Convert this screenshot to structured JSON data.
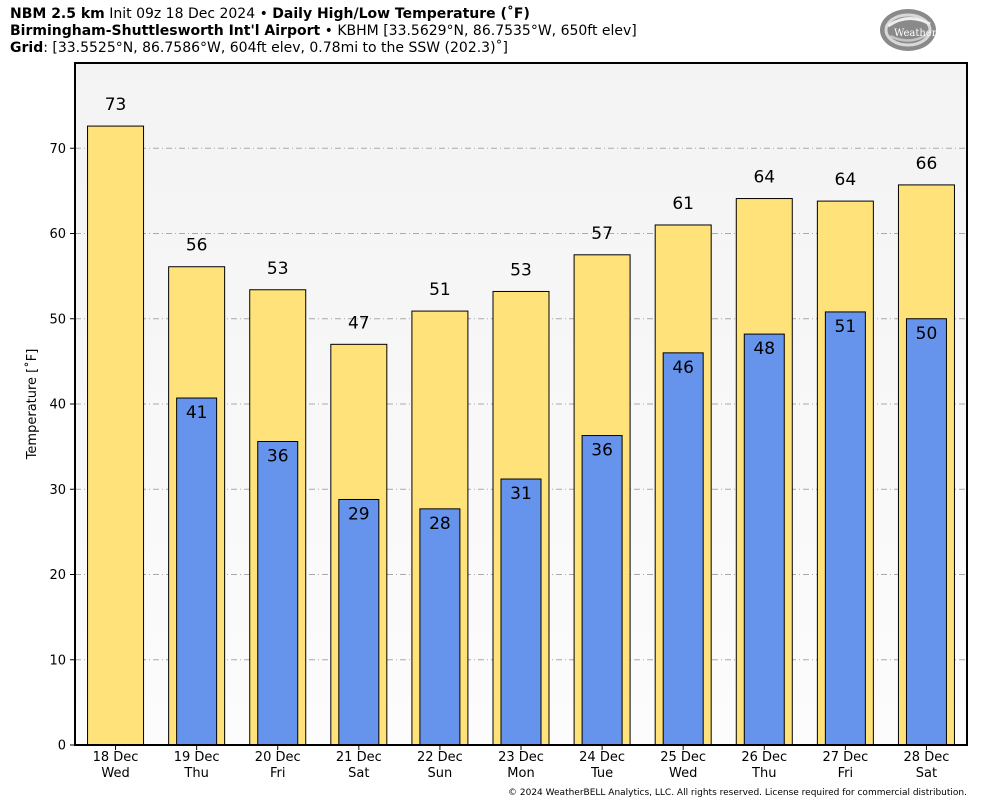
{
  "header": {
    "model": "NBM 2.5 km",
    "init": "Init 09z 18 Dec 2024",
    "bullet": "•",
    "product": "Daily High/Low Temperature (˚F)",
    "station_name": "Birmingham-Shuttlesworth Int'l Airport",
    "station_info": "KBHM [33.5629°N, 86.7535°W, 650ft elev]",
    "grid_label": "Grid",
    "grid_info": ": [33.5525°N, 86.7586°W, 604ft elev, 0.78mi to the SSW (202.3)˚]"
  },
  "logo": {
    "name": "WeatherBELL",
    "icon": "weatherbell-logo-icon"
  },
  "copyright": "© 2024 WeatherBELL Analytics, LLC. All rights reserved. License required for commercial distribution.",
  "colors": {
    "high": "#ffe37a",
    "low": "#6694ec",
    "plot_bg_top": "#f3f3f3",
    "plot_bg_bottom": "#fcfcfc",
    "grid": "#aaaaaa"
  },
  "chart_data": {
    "type": "bar",
    "title": "Daily High/Low Temperature (˚F)",
    "ylabel": "Temperature [˚F]",
    "xlabel": "",
    "ylim": [
      0,
      80
    ],
    "yticks": [
      0,
      10,
      20,
      30,
      40,
      50,
      60,
      70
    ],
    "grid": true,
    "categories": [
      {
        "date": "18 Dec",
        "day": "Wed"
      },
      {
        "date": "19 Dec",
        "day": "Thu"
      },
      {
        "date": "20 Dec",
        "day": "Fri"
      },
      {
        "date": "21 Dec",
        "day": "Sat"
      },
      {
        "date": "22 Dec",
        "day": "Sun"
      },
      {
        "date": "23 Dec",
        "day": "Mon"
      },
      {
        "date": "24 Dec",
        "day": "Tue"
      },
      {
        "date": "25 Dec",
        "day": "Wed"
      },
      {
        "date": "26 Dec",
        "day": "Thu"
      },
      {
        "date": "27 Dec",
        "day": "Fri"
      },
      {
        "date": "28 Dec",
        "day": "Sat"
      }
    ],
    "series": [
      {
        "values": [
          72.6,
          56.1,
          53.4,
          47.0,
          50.9,
          53.2,
          57.5,
          61.0,
          64.1,
          63.8,
          65.7
        ],
        "labels": [
          "73",
          "56",
          "53",
          "47",
          "51",
          "53",
          "57",
          "61",
          "64",
          "64",
          "66"
        ]
      },
      {
        "values": [
          null,
          40.7,
          35.6,
          28.8,
          27.7,
          31.2,
          36.3,
          46.0,
          48.2,
          50.8,
          50.0
        ],
        "labels": [
          null,
          "41",
          "36",
          "29",
          "28",
          "31",
          "36",
          "46",
          "48",
          "51",
          "50"
        ]
      }
    ]
  }
}
